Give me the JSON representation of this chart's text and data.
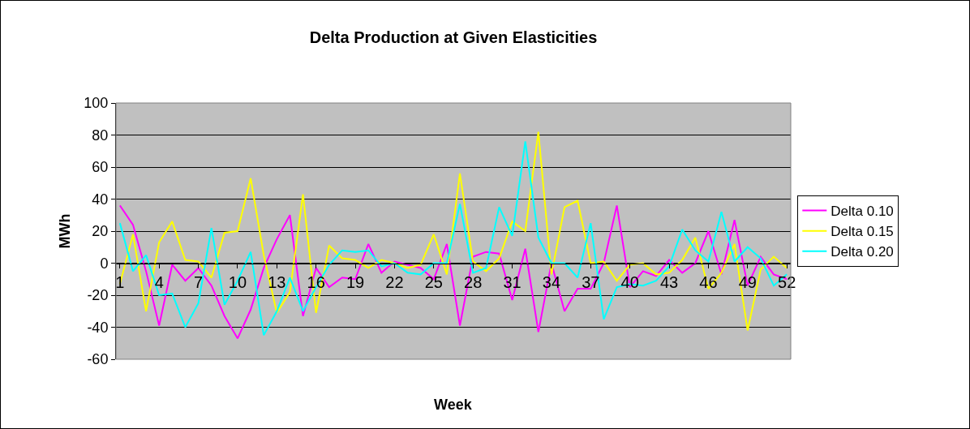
{
  "chart_data": {
    "type": "line",
    "title": "Delta Production at Given Elasticities",
    "xlabel": "Week",
    "ylabel": "MWh",
    "x": [
      1,
      2,
      3,
      4,
      5,
      6,
      7,
      8,
      9,
      10,
      11,
      12,
      13,
      14,
      15,
      16,
      17,
      18,
      19,
      20,
      21,
      22,
      23,
      24,
      25,
      26,
      27,
      28,
      29,
      30,
      31,
      32,
      33,
      34,
      35,
      36,
      37,
      38,
      39,
      40,
      41,
      42,
      43,
      44,
      45,
      46,
      47,
      48,
      49,
      50,
      51,
      52
    ],
    "xlim": [
      0.7,
      52.3
    ],
    "xticks": [
      1,
      4,
      7,
      10,
      13,
      16,
      19,
      22,
      25,
      28,
      31,
      34,
      37,
      40,
      43,
      46,
      49,
      52
    ],
    "ylim": [
      -60,
      100
    ],
    "yticks": [
      -60,
      -40,
      -20,
      0,
      20,
      40,
      60,
      80,
      100
    ],
    "grid": "y",
    "legend": "right",
    "marker": "none",
    "line_style": "solid",
    "series": [
      {
        "name": "Delta 0.10",
        "color": "#ff00ff",
        "values": [
          36,
          24,
          -5,
          -39,
          -1,
          -11,
          -3,
          -14,
          -33,
          -47,
          -29,
          -3,
          15,
          30,
          -33,
          -3,
          -15,
          -9,
          -10,
          12,
          -6,
          1,
          -1,
          -3,
          -10,
          12,
          -39,
          4,
          7,
          6,
          -23,
          9,
          -43,
          0,
          -30,
          -16,
          -16,
          0,
          36,
          -15,
          -5,
          -8,
          2,
          -6,
          0,
          20,
          -7,
          27,
          -14,
          4,
          -7,
          -10
        ]
      },
      {
        "name": "Delta 0.15",
        "color": "#ffff00",
        "values": [
          -13,
          18,
          -30,
          13,
          26,
          2,
          1,
          -9,
          19,
          20,
          53,
          5,
          -31,
          -18,
          43,
          -31,
          11,
          3,
          2,
          -3,
          2,
          0,
          -3,
          -1,
          18,
          -7,
          56,
          1,
          -5,
          3,
          26,
          20,
          82,
          -7,
          35,
          39,
          0,
          1,
          -11,
          -1,
          0,
          -7,
          -6,
          2,
          16,
          -16,
          -6,
          12,
          -42,
          -4,
          4,
          -3
        ]
      },
      {
        "name": "Delta 0.20",
        "color": "#00ffff",
        "values": [
          25,
          -5,
          5,
          -20,
          -19,
          -40,
          -25,
          22,
          -26,
          -11,
          7,
          -45,
          -30,
          -9,
          -30,
          -15,
          -1,
          8,
          7,
          8,
          -2,
          0,
          -6,
          -7,
          0,
          0,
          37,
          -6,
          -3,
          35,
          17,
          76,
          16,
          0,
          0,
          -9,
          25,
          -35,
          -15,
          -13,
          -14,
          -11,
          -2,
          21,
          8,
          1,
          32,
          1,
          10,
          3,
          -14,
          -7
        ]
      }
    ]
  }
}
